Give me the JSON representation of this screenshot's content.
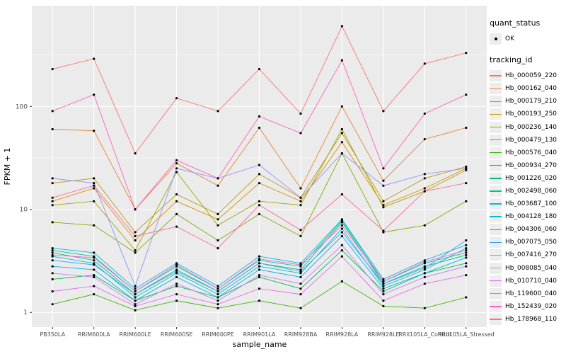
{
  "figure": {
    "y_axis_title": "FPKM + 1",
    "x_axis_title": "sample_name"
  },
  "legend": {
    "quant_status": {
      "title": "quant_status",
      "items": [
        {
          "label": "OK",
          "glyph": "point",
          "color": "#000000"
        }
      ]
    },
    "tracking_id": {
      "title": "tracking_id"
    }
  },
  "chart_data": {
    "type": "line",
    "title": "",
    "xlabel": "sample_name",
    "ylabel": "FPKM + 1",
    "y_scale": "log10",
    "ylim": [
      0.72,
      950
    ],
    "y_breaks": [
      1,
      10,
      100
    ],
    "y_minor_breaks": [
      3.1623,
      31.623,
      316.23
    ],
    "grid": true,
    "legend_position": "right",
    "panel_bg": "#EBEBEB",
    "grid_color": "#FFFFFF",
    "tick_color": "#333333",
    "tick_label_color": "#4D4D4D",
    "point_color": "#000000",
    "categories": [
      "PB350LA",
      "RRIM600LA",
      "RRIM600LE",
      "RRIM600SE",
      "RRIM600PE",
      "RRIM901LA",
      "RRIM928BA",
      "RRIM928LA",
      "RRIM928LE",
      "RRII105LA_Control",
      "RRII105LA_Stressed"
    ],
    "series": [
      {
        "name": "Hb_000059_220",
        "color": "#F8766D",
        "values": [
          230,
          290,
          35,
          120,
          90,
          230,
          85,
          600,
          90,
          260,
          330
        ]
      },
      {
        "name": "Hb_000162_040",
        "color": "#EA8331",
        "values": [
          60,
          58,
          10,
          28,
          17,
          62,
          16,
          100,
          19,
          48,
          62
        ]
      },
      {
        "name": "Hb_000179_210",
        "color": "#D89000",
        "values": [
          12,
          16,
          5,
          12,
          8,
          18,
          12,
          45,
          11,
          16,
          25
        ]
      },
      {
        "name": "Hb_000193_250",
        "color": "#C09B00",
        "values": [
          18,
          20,
          6,
          14,
          9,
          22,
          13,
          55,
          12,
          20,
          26
        ]
      },
      {
        "name": "Hb_000236_140",
        "color": "#A3A500",
        "values": [
          11,
          12,
          4,
          23,
          7,
          12,
          11,
          60,
          10.5,
          15,
          24
        ]
      },
      {
        "name": "Hb_000479_130",
        "color": "#7CAE00",
        "values": [
          7.5,
          7,
          3.8,
          9,
          5,
          9,
          5.5,
          35,
          6,
          7,
          12
        ]
      },
      {
        "name": "Hb_000576_040",
        "color": "#39B600",
        "values": [
          1.2,
          1.5,
          1.05,
          1.3,
          1.1,
          1.3,
          1.1,
          2.0,
          1.15,
          1.1,
          1.4
        ]
      },
      {
        "name": "Hb_000934_270",
        "color": "#00BB4E",
        "values": [
          2.1,
          2.3,
          1.3,
          1.8,
          1.4,
          2.2,
          1.7,
          4.0,
          1.6,
          2.4,
          3.0
        ]
      },
      {
        "name": "Hb_001226_020",
        "color": "#00BF7D",
        "values": [
          3.8,
          3.2,
          1.5,
          2.6,
          1.6,
          3.0,
          2.6,
          7.5,
          1.9,
          2.8,
          3.6
        ]
      },
      {
        "name": "Hb_002498_060",
        "color": "#00C1A3",
        "values": [
          4.0,
          3.5,
          1.6,
          2.8,
          1.7,
          3.2,
          2.8,
          7.8,
          2.0,
          3.0,
          3.8
        ]
      },
      {
        "name": "Hb_003687_100",
        "color": "#00BFC4",
        "values": [
          3.5,
          3.0,
          1.4,
          2.4,
          1.5,
          2.8,
          2.4,
          6.5,
          1.8,
          2.6,
          4.2
        ]
      },
      {
        "name": "Hb_004128_180",
        "color": "#00BAE0",
        "values": [
          4.2,
          3.8,
          1.7,
          3.0,
          1.8,
          3.5,
          3.0,
          8.0,
          2.1,
          3.2,
          4.5
        ]
      },
      {
        "name": "Hb_004306_060",
        "color": "#00B0F6",
        "values": [
          2.8,
          2.6,
          1.3,
          2.2,
          1.4,
          2.6,
          2.2,
          5.5,
          1.7,
          2.4,
          3.4
        ]
      },
      {
        "name": "Hb_007075_050",
        "color": "#35A2FF",
        "values": [
          3.2,
          2.9,
          1.5,
          2.5,
          1.6,
          3.0,
          2.5,
          6.0,
          1.9,
          2.7,
          5.0
        ]
      },
      {
        "name": "Hb_007416_270",
        "color": "#9590FF",
        "values": [
          20,
          18,
          1.8,
          25,
          20,
          27,
          13,
          35,
          17,
          22,
          25
        ]
      },
      {
        "name": "Hb_008085_040",
        "color": "#C77CFF",
        "values": [
          2.4,
          2.2,
          1.2,
          1.9,
          1.3,
          2.3,
          1.9,
          4.5,
          1.5,
          2.2,
          2.8
        ]
      },
      {
        "name": "Hb_010710_040",
        "color": "#E76BF3",
        "values": [
          1.6,
          1.8,
          1.15,
          1.5,
          1.2,
          1.7,
          1.5,
          3.5,
          1.3,
          1.9,
          2.3
        ]
      },
      {
        "name": "Hb_119600_040",
        "color": "#FA62DB",
        "values": [
          3.6,
          3.4,
          1.6,
          2.9,
          1.7,
          3.3,
          2.9,
          7.0,
          2.0,
          3.1,
          4.0
        ]
      },
      {
        "name": "Hb_152439_020",
        "color": "#FF62BC",
        "values": [
          90,
          130,
          10,
          30,
          20,
          80,
          55,
          280,
          25,
          85,
          130
        ]
      },
      {
        "name": "Hb_178968_110",
        "color": "#FF6A98",
        "values": [
          13,
          17,
          5.5,
          6.8,
          4.2,
          11,
          6.3,
          14,
          6.2,
          15,
          18
        ]
      }
    ]
  }
}
